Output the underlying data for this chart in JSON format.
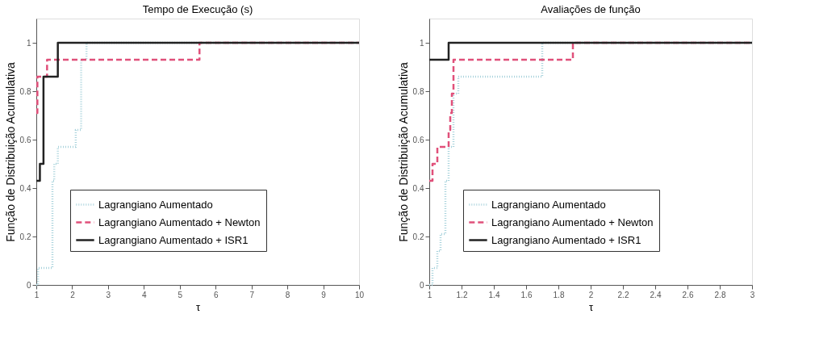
{
  "chart_data": [
    {
      "type": "step",
      "title": "Tempo de Execução (s)",
      "xlabel": "τ",
      "ylabel": "Função de Distribuição Acumulativa",
      "xlim": [
        1,
        10
      ],
      "ylim": [
        0,
        1.1
      ],
      "xticks": [
        1,
        2,
        3,
        4,
        5,
        6,
        7,
        8,
        9,
        10
      ],
      "yticks": [
        0,
        0.2,
        0.4,
        0.6,
        0.8,
        1
      ],
      "grid": false,
      "legend": "bottom left",
      "marker": "none",
      "series": [
        {
          "name": "Lagrangiano Aumentado",
          "color": "#a9d3dc",
          "line_style": "dotted",
          "x": [
            1,
            1.05,
            1.45,
            1.5,
            1.6,
            1.9,
            2.1,
            2.25,
            2.4,
            10
          ],
          "values": [
            0,
            0.07,
            0.43,
            0.5,
            0.57,
            0.57,
            0.64,
            0.93,
            1,
            1
          ]
        },
        {
          "name": "Lagrangiano Aumentado + Newton",
          "color": "#e0507a",
          "line_style": "dashed",
          "x": [
            1,
            1.03,
            1.3,
            5.55,
            10
          ],
          "values": [
            0.71,
            0.86,
            0.93,
            1,
            1
          ]
        },
        {
          "name": "Lagrangiano Aumentado + ISR1",
          "color": "#222222",
          "line_style": "solid",
          "x": [
            1,
            1.1,
            1.2,
            1.6,
            10
          ],
          "values": [
            0.43,
            0.5,
            0.86,
            1,
            1
          ]
        }
      ]
    },
    {
      "type": "step",
      "title": "Avaliações de função",
      "xlabel": "τ",
      "ylabel": "Função de Distribuição Acumulativa",
      "xlim": [
        1,
        3
      ],
      "ylim": [
        0,
        1.1
      ],
      "xticks": [
        1,
        1.2,
        1.4,
        1.6,
        1.8,
        2,
        2.2,
        2.4,
        2.6,
        2.8,
        3
      ],
      "yticks": [
        0,
        0.2,
        0.4,
        0.6,
        0.8,
        1
      ],
      "grid": false,
      "legend": "bottom left",
      "marker": "none",
      "series": [
        {
          "name": "Lagrangiano Aumentado",
          "color": "#a9d3dc",
          "line_style": "dotted",
          "x": [
            1,
            1.02,
            1.05,
            1.07,
            1.1,
            1.12,
            1.15,
            1.18,
            1.7,
            3
          ],
          "values": [
            0,
            0.07,
            0.14,
            0.21,
            0.43,
            0.57,
            0.79,
            0.86,
            1,
            1
          ]
        },
        {
          "name": "Lagrangiano Aumentado + Newton",
          "color": "#e0507a",
          "line_style": "dashed",
          "x": [
            1,
            1.02,
            1.05,
            1.11,
            1.12,
            1.13,
            1.14,
            1.15,
            1.89,
            3
          ],
          "values": [
            0.43,
            0.5,
            0.57,
            0.57,
            0.64,
            0.71,
            0.79,
            0.93,
            1,
            1
          ]
        },
        {
          "name": "Lagrangiano Aumentado + ISR1",
          "color": "#222222",
          "line_style": "solid",
          "x": [
            1,
            1.12,
            3
          ],
          "values": [
            0.93,
            1,
            1
          ]
        }
      ]
    }
  ]
}
